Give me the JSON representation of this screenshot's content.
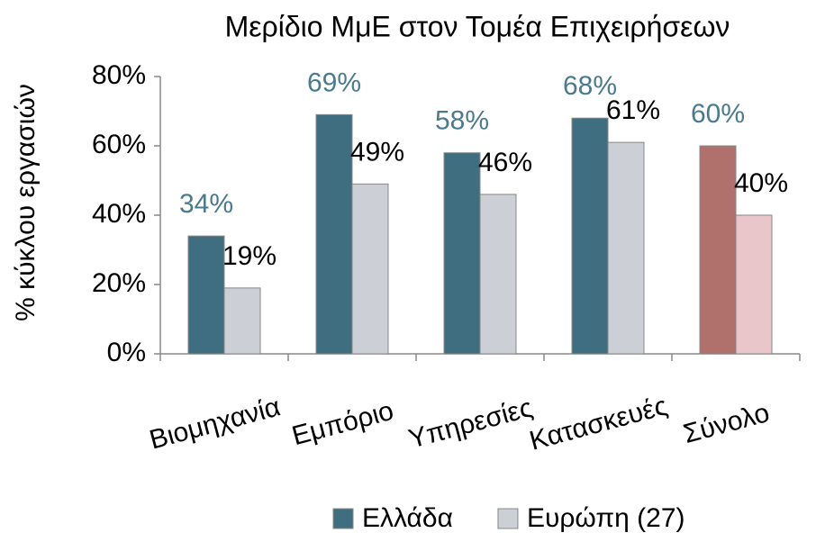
{
  "chart_data": {
    "type": "bar",
    "title": "Μερίδιο ΜμΕ στον Τομέα  Επιχειρήσεων",
    "y_label": "% κύκλου εργασιών",
    "categories": [
      "Βιομηχανία",
      "Εμπόριο",
      "Υπηρεσίες",
      "Κατασκευές",
      "Σύνολο"
    ],
    "series": [
      {
        "name": "Ελλάδα",
        "color": "#3f6e80",
        "label_color": "#4a7a8e",
        "colors": [
          "#3f6e80",
          "#3f6e80",
          "#3f6e80",
          "#3f6e80",
          "#b0706c"
        ],
        "values": [
          34,
          69,
          58,
          68,
          60
        ],
        "value_labels": [
          "34%",
          "69%",
          "58%",
          "68%",
          "60%"
        ]
      },
      {
        "name": "Ευρώπη (27)",
        "color": "#ccd0d6",
        "label_color": "#000000",
        "colors": [
          "#ccd0d6",
          "#ccd0d6",
          "#ccd0d6",
          "#ccd0d6",
          "#e8c6ca"
        ],
        "values": [
          19,
          49,
          46,
          61,
          40
        ],
        "value_labels": [
          "19%",
          "49%",
          "46%",
          "61%",
          "40%"
        ]
      }
    ],
    "ylim": [
      0,
      80
    ],
    "yticks": [
      {
        "value": 0,
        "label": "0%"
      },
      {
        "value": 20,
        "label": "20%"
      },
      {
        "value": 40,
        "label": "40%"
      },
      {
        "value": 60,
        "label": "60%"
      },
      {
        "value": 80,
        "label": "80%"
      }
    ],
    "grid": false,
    "legend": "bottom"
  }
}
